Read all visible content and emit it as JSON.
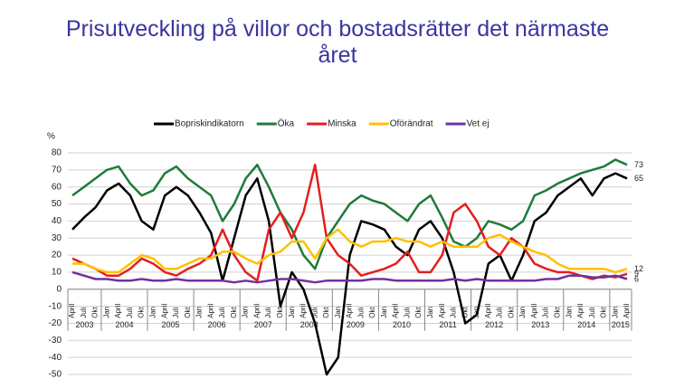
{
  "chart_data": {
    "type": "line",
    "title": "Prisutveckling på villor och bostadsrätter det närmaste året",
    "y_unit": "%",
    "categories": [
      "April",
      "Juli",
      "Okt",
      "Jan",
      "April",
      "Juli",
      "Okt",
      "Jan",
      "April",
      "Juli",
      "Okt",
      "Jan",
      "April",
      "Juli",
      "Okt",
      "Jan",
      "April",
      "Juli",
      "Okt",
      "Jan",
      "April",
      "Juli",
      "Okt",
      "Jan",
      "April",
      "Juli",
      "Okt",
      "Jan",
      "April",
      "Juli",
      "Okt",
      "Jan",
      "April",
      "Juli",
      "Okt",
      "Jan",
      "April",
      "Juli",
      "Okt",
      "Jan",
      "April",
      "Juli",
      "Okt",
      "Jan",
      "April",
      "Juli",
      "Okt",
      "Jan",
      "April"
    ],
    "year_labels": [
      "2003",
      null,
      null,
      "2004",
      null,
      null,
      null,
      "2005",
      null,
      null,
      null,
      "2006",
      null,
      null,
      null,
      "2007",
      null,
      null,
      null,
      "2008",
      null,
      null,
      null,
      "2009",
      null,
      null,
      null,
      "2010",
      null,
      null,
      null,
      "2011",
      null,
      null,
      null,
      "2012",
      null,
      null,
      null,
      "2013",
      null,
      null,
      null,
      "2014",
      null,
      null,
      null,
      "2015",
      null
    ],
    "series": [
      {
        "name": "Bopriskindikatorn",
        "color": "#000000",
        "values": [
          35,
          42,
          48,
          58,
          62,
          55,
          40,
          35,
          55,
          60,
          55,
          45,
          33,
          5,
          30,
          55,
          65,
          40,
          -10,
          10,
          0,
          -20,
          -50,
          -40,
          20,
          40,
          38,
          35,
          25,
          20,
          35,
          40,
          30,
          10,
          -20,
          -15,
          15,
          20,
          5,
          20,
          40,
          45,
          55,
          60,
          65,
          55,
          65,
          68,
          65
        ]
      },
      {
        "name": "Öka",
        "color": "#1e7b3a",
        "values": [
          55,
          60,
          65,
          70,
          72,
          62,
          55,
          58,
          68,
          72,
          65,
          60,
          55,
          40,
          50,
          65,
          73,
          60,
          45,
          35,
          20,
          12,
          30,
          40,
          50,
          55,
          52,
          50,
          45,
          40,
          50,
          55,
          42,
          28,
          25,
          30,
          40,
          38,
          35,
          40,
          55,
          58,
          62,
          65,
          68,
          70,
          72,
          76,
          73
        ]
      },
      {
        "name": "Minska",
        "color": "#e41e1e",
        "values": [
          18,
          15,
          12,
          8,
          8,
          12,
          18,
          15,
          10,
          8,
          12,
          15,
          20,
          35,
          20,
          10,
          5,
          35,
          45,
          30,
          45,
          73,
          30,
          20,
          15,
          8,
          10,
          12,
          15,
          22,
          10,
          10,
          20,
          45,
          50,
          40,
          25,
          20,
          30,
          25,
          15,
          12,
          10,
          10,
          8,
          6,
          8,
          7,
          9
        ]
      },
      {
        "name": "Oförändrat",
        "color": "#ffc000",
        "values": [
          15,
          15,
          12,
          10,
          10,
          15,
          20,
          18,
          12,
          12,
          15,
          18,
          18,
          22,
          22,
          18,
          15,
          20,
          22,
          28,
          28,
          18,
          30,
          35,
          28,
          25,
          28,
          28,
          30,
          28,
          28,
          25,
          28,
          25,
          25,
          25,
          30,
          32,
          28,
          25,
          22,
          20,
          15,
          12,
          12,
          12,
          12,
          10,
          12
        ]
      },
      {
        "name": "Vet ej",
        "color": "#7030a0",
        "values": [
          10,
          8,
          6,
          6,
          5,
          5,
          6,
          5,
          5,
          6,
          5,
          5,
          5,
          5,
          4,
          5,
          4,
          5,
          6,
          6,
          5,
          4,
          5,
          5,
          5,
          5,
          6,
          6,
          5,
          5,
          5,
          5,
          5,
          6,
          5,
          6,
          5,
          5,
          5,
          5,
          5,
          6,
          6,
          8,
          8,
          7,
          7,
          8,
          6
        ]
      }
    ],
    "ylim": [
      -50,
      80
    ],
    "yticks": [
      -50,
      -40,
      -30,
      -20,
      -10,
      0,
      10,
      20,
      30,
      40,
      50,
      60,
      70,
      80
    ],
    "grid": true,
    "legend": "top"
  }
}
